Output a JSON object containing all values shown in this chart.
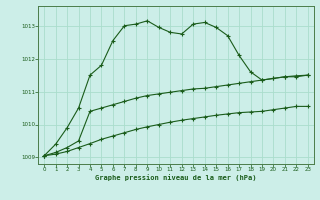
{
  "title": "Graphe pression niveau de la mer (hPa)",
  "background_color": "#cceee8",
  "grid_color": "#aaddcc",
  "line_color": "#1a5c1a",
  "xlim": [
    -0.5,
    23.5
  ],
  "ylim": [
    1008.8,
    1013.6
  ],
  "yticks": [
    1009,
    1010,
    1011,
    1012,
    1013
  ],
  "xticks": [
    0,
    1,
    2,
    3,
    4,
    5,
    6,
    7,
    8,
    9,
    10,
    11,
    12,
    13,
    14,
    15,
    16,
    17,
    18,
    19,
    20,
    21,
    22,
    23
  ],
  "series1_x": [
    0,
    1,
    2,
    3,
    4,
    5,
    6,
    7,
    8,
    9,
    10,
    11,
    12,
    13,
    14,
    15,
    16,
    17,
    18,
    19,
    20,
    21,
    22,
    23
  ],
  "series1_y": [
    1009.05,
    1009.4,
    1009.9,
    1010.5,
    1011.5,
    1011.8,
    1012.55,
    1013.0,
    1013.05,
    1013.15,
    1012.95,
    1012.8,
    1012.75,
    1013.05,
    1013.1,
    1012.95,
    1012.7,
    1012.1,
    1011.6,
    1011.35,
    1011.4,
    1011.45,
    1011.45,
    1011.5
  ],
  "series2_x": [
    0,
    1,
    2,
    3,
    4,
    5,
    6,
    7,
    8,
    9,
    10,
    11,
    12,
    13,
    14,
    15,
    16,
    17,
    18,
    19,
    20,
    21,
    22,
    23
  ],
  "series2_y": [
    1009.05,
    1009.15,
    1009.3,
    1009.5,
    1010.4,
    1010.5,
    1010.6,
    1010.7,
    1010.8,
    1010.88,
    1010.93,
    1010.98,
    1011.03,
    1011.08,
    1011.1,
    1011.15,
    1011.2,
    1011.25,
    1011.3,
    1011.35,
    1011.4,
    1011.45,
    1011.48,
    1011.5
  ],
  "series3_x": [
    0,
    1,
    2,
    3,
    4,
    5,
    6,
    7,
    8,
    9,
    10,
    11,
    12,
    13,
    14,
    15,
    16,
    17,
    18,
    19,
    20,
    21,
    22,
    23
  ],
  "series3_y": [
    1009.05,
    1009.1,
    1009.18,
    1009.3,
    1009.42,
    1009.55,
    1009.65,
    1009.75,
    1009.85,
    1009.93,
    1010.0,
    1010.07,
    1010.13,
    1010.18,
    1010.23,
    1010.28,
    1010.32,
    1010.36,
    1010.38,
    1010.4,
    1010.45,
    1010.5,
    1010.55,
    1010.55
  ]
}
